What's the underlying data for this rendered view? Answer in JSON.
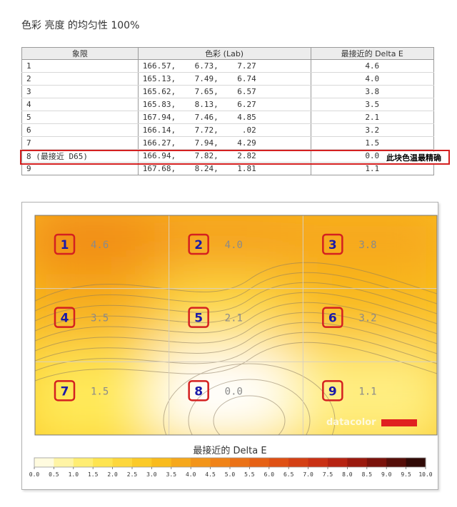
{
  "title": "色彩 亮度 的均匀性 100%",
  "table": {
    "headers": [
      "象限",
      "色彩 (Lab)",
      "最接近的 Delta E"
    ],
    "rows": [
      {
        "q": "1",
        "lab": "166.57,    6.73,    7.27",
        "de": "4.6"
      },
      {
        "q": "2",
        "lab": "165.13,    7.49,    6.74",
        "de": "4.0"
      },
      {
        "q": "3",
        "lab": "165.62,    7.65,    6.57",
        "de": "3.8"
      },
      {
        "q": "4",
        "lab": "165.83,    8.13,    6.27",
        "de": "3.5"
      },
      {
        "q": "5",
        "lab": "167.94,    7.46,    4.85",
        "de": "2.1"
      },
      {
        "q": "6",
        "lab": "166.14,    7.72,     .02",
        "de": "3.2"
      },
      {
        "q": "7",
        "lab": "166.27,    7.94,    4.29",
        "de": "1.5"
      },
      {
        "q": "8 (最接近 D65)",
        "lab": "166.94,    7.82,    2.82",
        "de": "0.0"
      },
      {
        "q": "9",
        "lab": "167.68,    8.24,    1.81",
        "de": "1.1"
      }
    ]
  },
  "annotation": "此块色温最精确",
  "watermark": "datacolor",
  "colors": {
    "highlight": "#d42020",
    "label_text": "#1a1aa8"
  },
  "chart_data": {
    "type": "heatmap",
    "grid": [
      [
        {
          "q": "1",
          "de": 4.6
        },
        {
          "q": "2",
          "de": 4.0
        },
        {
          "q": "3",
          "de": 3.8
        }
      ],
      [
        {
          "q": "4",
          "de": 3.5
        },
        {
          "q": "5",
          "de": 2.1
        },
        {
          "q": "6",
          "de": 3.2
        }
      ],
      [
        {
          "q": "7",
          "de": 1.5
        },
        {
          "q": "8",
          "de": 0.0
        },
        {
          "q": "9",
          "de": 1.1
        }
      ]
    ],
    "colorbar_title": "最接近的 Delta E",
    "colorbar_range": [
      0,
      10
    ],
    "colorbar_ticks": [
      "0.0",
      "0.5",
      "1.0",
      "1.5",
      "2.0",
      "2.5",
      "3.0",
      "3.5",
      "4.0",
      "4.5",
      "5.0",
      "5.5",
      "6.0",
      "6.5",
      "7.0",
      "7.5",
      "8.0",
      "8.5",
      "9.0",
      "9.5",
      "10.0"
    ]
  }
}
